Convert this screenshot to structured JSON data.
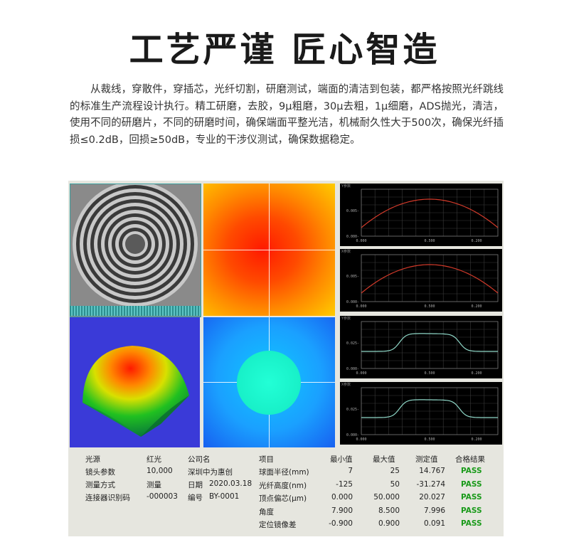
{
  "header": {
    "title": "工艺严谨 匠心智造",
    "paragraph": "从裁线，穿散件，穿插芯，光纤切割，研磨测试，端面的清洁到包装，都严格按照光纤跳线的标准生产流程设计执行。精工研磨，去胶，9μ粗磨，30μ去粗，1μ细磨，ADS抛光，清洁，使用不同的研磨片，不同的研磨时间，确保端面平整光洁，机械耐久性大于500次，确保光纤插损≤0.2dB，回损≥50dB，专业的干涉仪测试，确保数据稳定。"
  },
  "graphs": [
    {
      "label": "Y参数",
      "yticks": [
        "0.005-",
        "0.000-"
      ],
      "xticks": [
        "0.000",
        "0.500",
        "0.200"
      ],
      "color": "#d23a2a",
      "shape": "arc"
    },
    {
      "label": "X参数",
      "yticks": [
        "0.005-",
        "0.000-"
      ],
      "xticks": [
        "0.000",
        "0.500",
        "0.200"
      ],
      "color": "#d23a2a",
      "shape": "arc"
    },
    {
      "label": "Y参数",
      "yticks": [
        "0.025-",
        "0.000-"
      ],
      "xticks": [
        "0.000",
        "0.500",
        "0.200"
      ],
      "color": "#8fd8c8",
      "shape": "plateau"
    },
    {
      "label": "X参数",
      "yticks": [
        "0.025-",
        "0.000-"
      ],
      "xticks": [
        "0.000",
        "0.500",
        "0.200"
      ],
      "color": "#8fd8c8",
      "shape": "plateau"
    }
  ],
  "info": {
    "light_source_label": "光源",
    "light_source_value": "红光",
    "lens_label": "镜头参数",
    "lens_value": "10,000",
    "method_label": "测量方式",
    "method_value": "测量",
    "connector_label": "连接器识别码",
    "connector_value": "-000003",
    "company_label": "公司名",
    "company_value": "深圳中为惠创",
    "date_label": "日期",
    "date_value": "2020.03.18",
    "serial_label": "编号",
    "serial_value": "BY-0001"
  },
  "results": {
    "headers": [
      "项目",
      "最小值",
      "最大值",
      "测定值",
      "合格结果"
    ],
    "rows": [
      {
        "item": "球面半径(mm)",
        "min": "7",
        "max": "25",
        "value": "14.767",
        "result": "PASS"
      },
      {
        "item": "光纤高度(nm)",
        "min": "-125",
        "max": "50",
        "value": "-31.274",
        "result": "PASS"
      },
      {
        "item": "顶点偏芯(μm)",
        "min": "0.000",
        "max": "50.000",
        "value": "20.027",
        "result": "PASS"
      },
      {
        "item": "角度",
        "min": "7.900",
        "max": "8.500",
        "value": "7.996",
        "result": "PASS"
      },
      {
        "item": "定位镜像差",
        "min": "-0.900",
        "max": "0.900",
        "value": "0.091",
        "result": "PASS"
      }
    ]
  }
}
